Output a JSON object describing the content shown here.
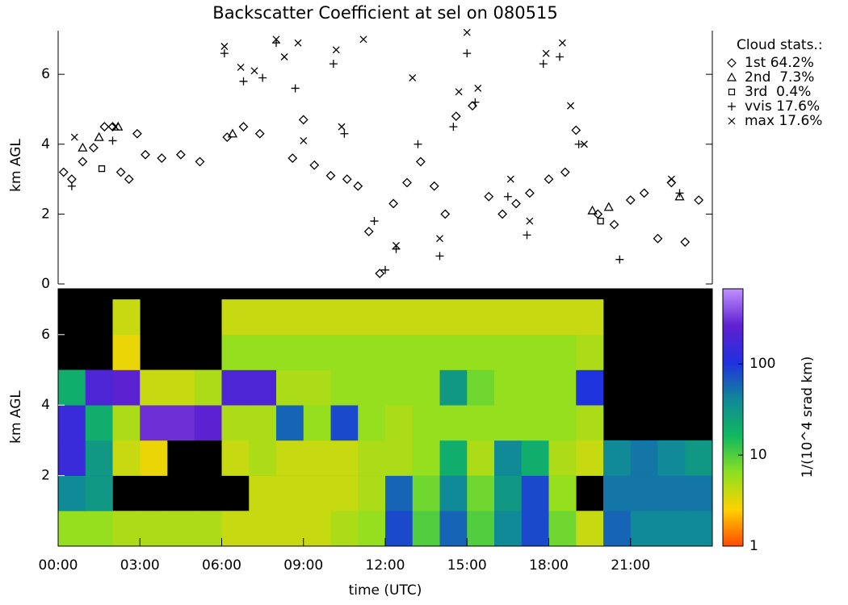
{
  "chart_data": [
    {
      "type": "scatter",
      "title": "Backscatter Coefficient at sel on 080515",
      "y_label": "km AGL",
      "legend_title": "Cloud stats.:",
      "legend": "upper right outside",
      "xlim": [
        0,
        24
      ],
      "ylim": [
        0,
        7.25
      ],
      "yticks": [
        0,
        2,
        4,
        6
      ],
      "series": [
        {
          "name": "1st 64.2%",
          "marker": "diamond",
          "color": "#000000",
          "x": [
            0.2,
            0.5,
            0.9,
            1.3,
            1.7,
            2.0,
            2.3,
            2.6,
            2.9,
            3.2,
            3.8,
            4.5,
            5.2,
            6.2,
            6.8,
            7.4,
            8.6,
            9.0,
            9.4,
            10.0,
            10.6,
            11.0,
            11.4,
            11.8,
            12.3,
            12.8,
            13.3,
            13.8,
            14.2,
            14.6,
            15.2,
            15.8,
            16.3,
            16.8,
            17.3,
            18.0,
            18.6,
            19.0,
            19.8,
            20.4,
            21.0,
            21.5,
            22.0,
            22.5,
            23.0,
            23.5
          ],
          "values": [
            3.2,
            3.0,
            3.5,
            3.9,
            4.5,
            4.5,
            3.2,
            3.0,
            4.3,
            3.7,
            3.6,
            3.7,
            3.5,
            4.2,
            4.5,
            4.3,
            3.6,
            4.7,
            3.4,
            3.1,
            3.0,
            2.8,
            1.5,
            0.3,
            2.3,
            2.9,
            3.5,
            2.8,
            2.0,
            4.8,
            5.1,
            2.5,
            2.0,
            2.3,
            2.6,
            3.0,
            3.2,
            4.4,
            2.0,
            1.7,
            2.4,
            2.6,
            1.3,
            2.9,
            1.2,
            2.4
          ]
        },
        {
          "name": "2nd  7.3%",
          "marker": "triangle",
          "color": "#000000",
          "x": [
            0.9,
            1.5,
            2.2,
            6.4,
            19.6,
            20.2,
            22.8
          ],
          "values": [
            3.9,
            4.2,
            4.5,
            4.3,
            2.1,
            2.2,
            2.5
          ]
        },
        {
          "name": "3rd  0.4%",
          "marker": "square",
          "color": "#000000",
          "x": [
            1.6,
            19.9
          ],
          "values": [
            3.3,
            1.8
          ]
        },
        {
          "name": "vvis 17.6%",
          "marker": "plus",
          "color": "#000000",
          "x": [
            0.5,
            2.0,
            6.1,
            6.8,
            7.5,
            8.0,
            8.7,
            10.1,
            10.5,
            11.6,
            12.0,
            12.4,
            13.2,
            14.0,
            14.5,
            15.0,
            15.3,
            16.5,
            17.2,
            17.8,
            18.4,
            19.1,
            20.6,
            22.8
          ],
          "values": [
            2.8,
            4.1,
            6.6,
            5.8,
            5.9,
            6.9,
            5.6,
            6.3,
            4.3,
            1.8,
            0.4,
            1.0,
            4.0,
            0.8,
            4.5,
            6.6,
            5.2,
            2.5,
            1.4,
            6.3,
            6.5,
            4.0,
            0.7,
            2.6
          ]
        },
        {
          "name": "max 17.6%",
          "marker": "cross",
          "color": "#000000",
          "x": [
            0.6,
            2.1,
            6.1,
            6.7,
            7.2,
            8.0,
            8.3,
            8.8,
            9.0,
            10.2,
            10.4,
            11.2,
            12.4,
            13.0,
            14.0,
            14.7,
            15.0,
            15.4,
            16.6,
            17.3,
            17.9,
            18.5,
            18.8,
            19.3,
            22.5
          ],
          "values": [
            4.2,
            4.5,
            6.8,
            6.2,
            6.1,
            7.0,
            6.5,
            6.9,
            4.1,
            6.7,
            4.5,
            7.0,
            1.1,
            5.9,
            1.3,
            5.5,
            7.2,
            5.6,
            3.0,
            1.8,
            6.6,
            6.9,
            5.1,
            4.0,
            3.0
          ]
        }
      ]
    },
    {
      "type": "heatmap",
      "x_label": "time (UTC)",
      "y_label": "km AGL",
      "colorbar_label": "1/(10^4 srad km)",
      "xlim": [
        0,
        24
      ],
      "xticks": [
        {
          "value": 0,
          "label": "00:00"
        },
        {
          "value": 3,
          "label": "03:00"
        },
        {
          "value": 6,
          "label": "06:00"
        },
        {
          "value": 9,
          "label": "09:00"
        },
        {
          "value": 12,
          "label": "12:00"
        },
        {
          "value": 15,
          "label": "15:00"
        },
        {
          "value": 18,
          "label": "18:00"
        },
        {
          "value": 21,
          "label": "21:00"
        }
      ],
      "ylim": [
        0,
        7.3
      ],
      "yticks": [
        2,
        4,
        6
      ],
      "x_bins": [
        0,
        1,
        2,
        3,
        4,
        5,
        6,
        7,
        8,
        9,
        10,
        11,
        12,
        13,
        14,
        15,
        16,
        17,
        18,
        19,
        20,
        21,
        22,
        23,
        24
      ],
      "y_bins": [
        0,
        1,
        2,
        3,
        4,
        5,
        6,
        7
      ],
      "clim": [
        1,
        670
      ],
      "log_color": true,
      "cticks": [
        1,
        10,
        100
      ],
      "colormap": [
        "#ff4a00",
        "#ffd200",
        "#8de020",
        "#10b860",
        "#108898",
        "#2030e0",
        "#6020d0",
        "#c090ff"
      ],
      "z": [
        [
          6,
          6,
          5,
          5,
          5,
          5,
          4,
          4,
          4,
          4,
          5,
          6,
          80,
          10,
          60,
          10,
          40,
          80,
          8,
          4,
          60,
          40,
          40,
          40
        ],
        [
          40,
          30,
          null,
          null,
          null,
          null,
          null,
          4,
          4,
          4,
          4,
          5,
          60,
          8,
          40,
          8,
          30,
          80,
          6,
          null,
          50,
          50,
          50,
          50
        ],
        [
          150,
          30,
          4,
          3,
          null,
          null,
          4,
          5,
          4,
          4,
          4,
          5,
          5,
          6,
          20,
          5,
          40,
          20,
          5,
          4,
          40,
          50,
          40,
          30
        ],
        [
          150,
          20,
          5,
          300,
          300,
          250,
          5,
          5,
          60,
          6,
          80,
          6,
          5,
          6,
          6,
          6,
          6,
          6,
          6,
          5,
          null,
          null,
          null,
          null
        ],
        [
          20,
          200,
          250,
          4,
          4,
          5,
          200,
          200,
          5,
          5,
          6,
          6,
          6,
          6,
          30,
          8,
          6,
          6,
          6,
          100,
          null,
          null,
          null,
          null
        ],
        [
          null,
          null,
          3,
          null,
          null,
          null,
          6,
          6,
          6,
          6,
          6,
          6,
          6,
          6,
          6,
          6,
          6,
          6,
          6,
          5,
          null,
          null,
          null,
          null
        ],
        [
          null,
          null,
          4,
          null,
          null,
          null,
          4,
          4,
          4,
          4,
          4,
          4,
          4,
          4,
          4,
          4,
          4,
          4,
          4,
          4,
          null,
          null,
          null,
          null
        ]
      ]
    }
  ]
}
